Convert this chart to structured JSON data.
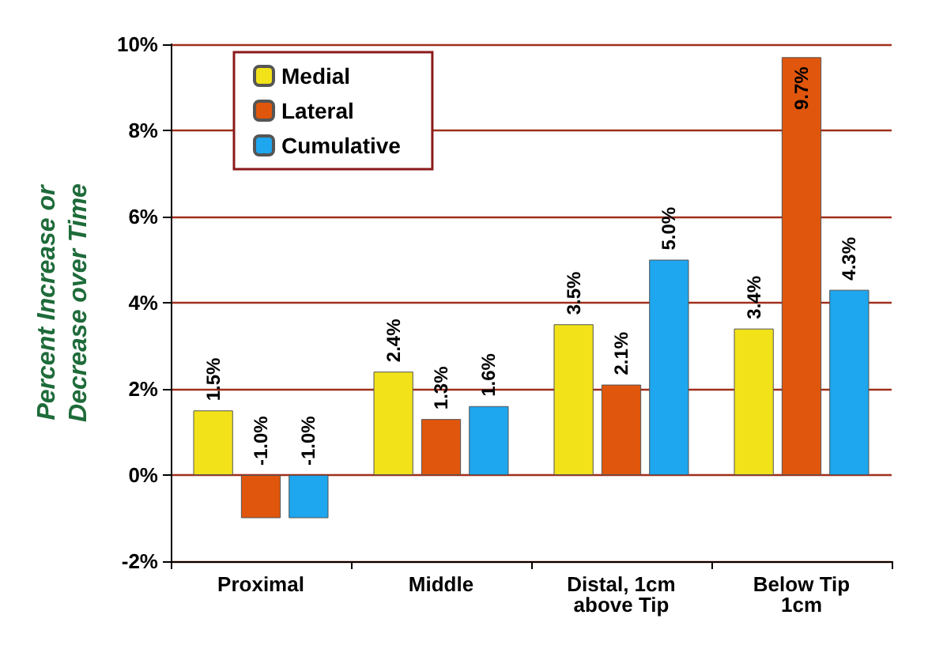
{
  "chart_data": {
    "type": "bar",
    "ylabel": "Percent Increase or\nDecrease over Time",
    "categories": [
      "Proximal",
      "Middle",
      "Distal, 1cm\nabove Tip",
      "Below Tip\n1cm"
    ],
    "series": [
      {
        "name": "Medial",
        "color": "#f2e21a",
        "values": [
          1.5,
          2.4,
          3.5,
          3.4
        ],
        "value_labels": [
          "1.5%",
          "2.4%",
          "3.5%",
          "3.4%"
        ]
      },
      {
        "name": "Lateral",
        "color": "#e0560c",
        "values": [
          -1.0,
          1.3,
          2.1,
          9.7
        ],
        "value_labels": [
          "-1.0%",
          "1.3%",
          "2.1%",
          "9.7%"
        ]
      },
      {
        "name": "Cumulative",
        "color": "#1ea6ee",
        "values": [
          -1.0,
          1.6,
          5.0,
          4.3
        ],
        "value_labels": [
          "-1.0%",
          "1.6%",
          "5.0%",
          "4.3%"
        ]
      }
    ],
    "ylim": [
      -2,
      10
    ],
    "yticks": [
      {
        "value": -2,
        "label": "-2%"
      },
      {
        "value": 0,
        "label": "0%"
      },
      {
        "value": 2,
        "label": "2%"
      },
      {
        "value": 4,
        "label": "4%"
      },
      {
        "value": 6,
        "label": "6%"
      },
      {
        "value": 8,
        "label": "8%"
      },
      {
        "value": 10,
        "label": "10%"
      }
    ],
    "grid": "y",
    "legend": "top left"
  }
}
